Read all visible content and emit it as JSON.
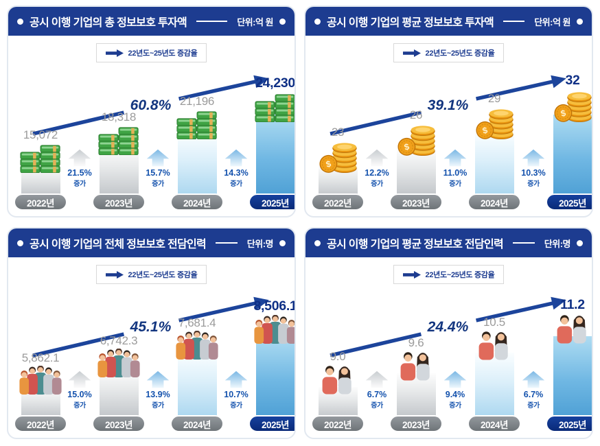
{
  "increase_word": "증가",
  "colors": {
    "header_bg": "#1d3c90",
    "growth_arrow": "#1c449b",
    "accent_navy": "#0e2f85",
    "value_gray": "#9b9b9b",
    "pill_gray": "#7d8389",
    "pill_navy": "#0d2f87",
    "percent_blue": "#1452ad",
    "bar_blue": "#4d9fd4",
    "bar_light_blue": "#a9d6ef"
  },
  "panels": [
    {
      "title": "공시 이행 기업의 총 정보보호 투자액",
      "unit": "단위:억 원",
      "legend": "22년도~25년도 증감율",
      "growth_label": "60.8%",
      "icon": "cash-stack-icon",
      "years": [
        "2022년",
        "2023년",
        "2024년",
        "2025년"
      ],
      "values": [
        "15,072",
        "18,318",
        "21,196",
        "24,230"
      ],
      "increases": [
        "21.5%",
        "15.7%",
        "14.3%"
      ]
    },
    {
      "title": "공시 이행 기업의 평균 정보보호 투자액",
      "unit": "단위:억 원",
      "legend": "22년도~25년도 증감율",
      "growth_label": "39.1%",
      "icon": "gold-coins-icon",
      "years": [
        "2022년",
        "2023년",
        "2024년",
        "2025년"
      ],
      "values": [
        "23",
        "26",
        "29",
        "32"
      ],
      "increases": [
        "12.2%",
        "11.0%",
        "10.3%"
      ]
    },
    {
      "title": "공시 이행 기업의 전체 정보보호 전담인력",
      "unit": "단위:명",
      "legend": "22년도~25년도 증감율",
      "growth_label": "45.1%",
      "icon": "people-group-icon",
      "years": [
        "2022년",
        "2023년",
        "2024년",
        "2025년"
      ],
      "values": [
        "5,862.1",
        "6,742.3",
        "7,681.4",
        "8,506.1"
      ],
      "increases": [
        "15.0%",
        "13.9%",
        "10.7%"
      ]
    },
    {
      "title": "공시 이행 기업의 평균 정보보호 전담인력",
      "unit": "단위:명",
      "legend": "22년도~25년도 증감율",
      "growth_label": "24.4%",
      "icon": "people-pair-icon",
      "years": [
        "2022년",
        "2023년",
        "2024년",
        "2025년"
      ],
      "values": [
        "9.0",
        "9.6",
        "10.5",
        "11.2"
      ],
      "increases": [
        "6.7%",
        "9.4%",
        "6.7%"
      ]
    }
  ],
  "chart_data": [
    {
      "type": "bar",
      "title": "공시 이행 기업의 총 정보보호 투자액",
      "ylabel": "투자액",
      "unit": "억 원",
      "categories": [
        "2022년",
        "2023년",
        "2024년",
        "2025년"
      ],
      "values": [
        15072,
        18318,
        21196,
        24230
      ],
      "yoy_increase_pct": [
        21.5,
        15.7,
        14.3
      ],
      "overall_growth_pct": 60.8,
      "overall_growth_period": "22년도~25년도",
      "highlight_category": "2025년",
      "legend": "22년도~25년도 증감율"
    },
    {
      "type": "bar",
      "title": "공시 이행 기업의 평균 정보보호 투자액",
      "ylabel": "투자액",
      "unit": "억 원",
      "categories": [
        "2022년",
        "2023년",
        "2024년",
        "2025년"
      ],
      "values": [
        23,
        26,
        29,
        32
      ],
      "yoy_increase_pct": [
        12.2,
        11.0,
        10.3
      ],
      "overall_growth_pct": 39.1,
      "overall_growth_period": "22년도~25년도",
      "highlight_category": "2025년",
      "legend": "22년도~25년도 증감율"
    },
    {
      "type": "bar",
      "title": "공시 이행 기업의 전체 정보보호 전담인력",
      "ylabel": "전담인력",
      "unit": "명",
      "categories": [
        "2022년",
        "2023년",
        "2024년",
        "2025년"
      ],
      "values": [
        5862.1,
        6742.3,
        7681.4,
        8506.1
      ],
      "yoy_increase_pct": [
        15.0,
        13.9,
        10.7
      ],
      "overall_growth_pct": 45.1,
      "overall_growth_period": "22년도~25년도",
      "highlight_category": "2025년",
      "legend": "22년도~25년도 증감율"
    },
    {
      "type": "bar",
      "title": "공시 이행 기업의 평균 정보보호 전담인력",
      "ylabel": "전담인력",
      "unit": "명",
      "categories": [
        "2022년",
        "2023년",
        "2024년",
        "2025년"
      ],
      "values": [
        9.0,
        9.6,
        10.5,
        11.2
      ],
      "yoy_increase_pct": [
        6.7,
        9.4,
        6.7
      ],
      "overall_growth_pct": 24.4,
      "overall_growth_period": "22년도~25년도",
      "highlight_category": "2025년",
      "legend": "22년도~25년도 증감율"
    }
  ]
}
